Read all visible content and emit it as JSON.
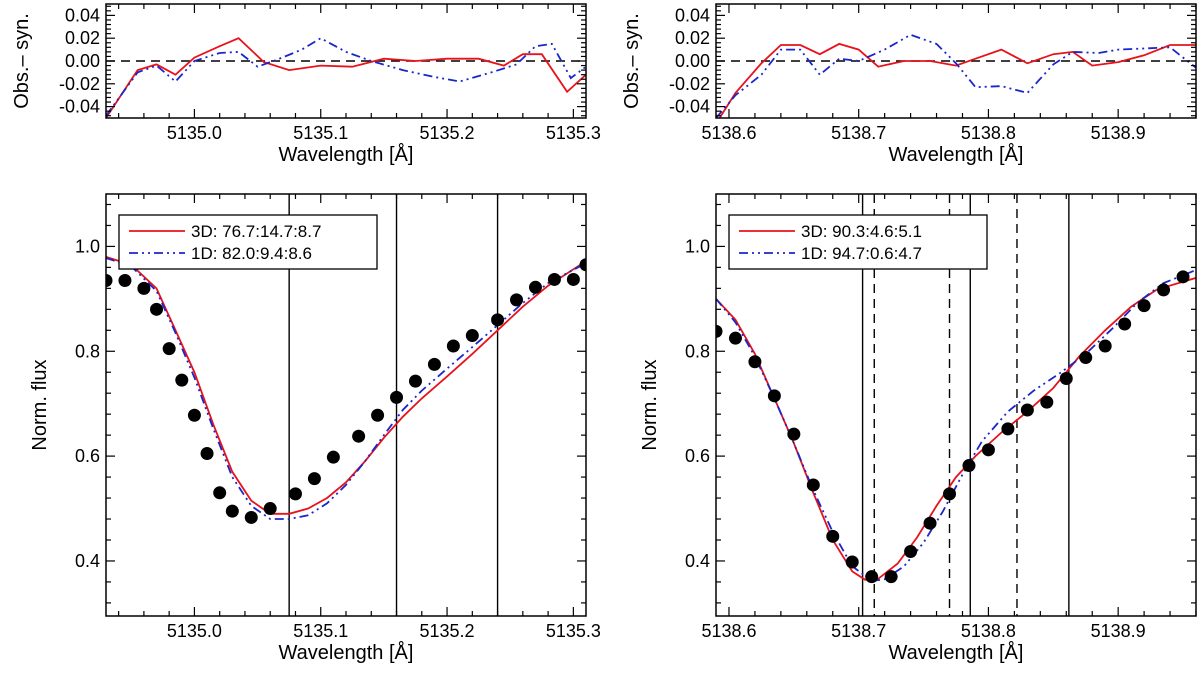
{
  "chart_data": [
    {
      "id": "tl",
      "type": "line",
      "title": "",
      "xlabel": "Wavelength [Å]",
      "ylabel": "Obs.– syn.",
      "xlim": [
        5134.93,
        5135.31
      ],
      "ylim": [
        -0.05,
        0.05
      ],
      "xticks": [
        5135.0,
        5135.1,
        5135.2,
        5135.3
      ],
      "xtick_labels": [
        "5135.0",
        "5135.1",
        "5135.2",
        "5135.3"
      ],
      "yticks": [
        -0.04,
        -0.02,
        0.0,
        0.02,
        0.04
      ],
      "ytick_labels": [
        "-0.04",
        "-0.02",
        "0.00",
        "0.02",
        "0.04"
      ],
      "hlines": [
        {
          "y": 0,
          "style": "dashed",
          "color": "#000000"
        }
      ],
      "series": [
        {
          "name": "3D",
          "color": "#e8121a",
          "style": "solid",
          "x": [
            5134.93,
            5134.955,
            5134.97,
            5134.985,
            5135.0,
            5135.02,
            5135.035,
            5135.055,
            5135.075,
            5135.1,
            5135.125,
            5135.15,
            5135.175,
            5135.2,
            5135.225,
            5135.245,
            5135.26,
            5135.275,
            5135.295,
            5135.31
          ],
          "y": [
            -0.05,
            -0.008,
            -0.003,
            -0.012,
            0.003,
            0.013,
            0.02,
            -0.001,
            -0.008,
            -0.004,
            -0.005,
            0.002,
            0.0,
            0.002,
            0.002,
            -0.004,
            0.006,
            0.006,
            -0.027,
            -0.012
          ]
        },
        {
          "name": "1D",
          "color": "#1a26cc",
          "style": "dashdotdot",
          "x": [
            5134.93,
            5134.955,
            5134.97,
            5134.985,
            5135.0,
            5135.02,
            5135.035,
            5135.05,
            5135.065,
            5135.085,
            5135.1,
            5135.12,
            5135.14,
            5135.165,
            5135.19,
            5135.21,
            5135.235,
            5135.255,
            5135.27,
            5135.283,
            5135.298,
            5135.31
          ],
          "y": [
            -0.048,
            -0.01,
            -0.004,
            -0.018,
            0.0,
            0.007,
            0.008,
            -0.005,
            0.001,
            0.01,
            0.02,
            0.008,
            0.0,
            -0.008,
            -0.014,
            -0.018,
            -0.01,
            -0.003,
            0.013,
            0.015,
            -0.015,
            -0.005
          ]
        }
      ]
    },
    {
      "id": "tr",
      "type": "line",
      "title": "",
      "xlabel": "Wavelength [Å]",
      "ylabel": "Obs.– syn.",
      "xlim": [
        5138.59,
        5138.96
      ],
      "ylim": [
        -0.05,
        0.05
      ],
      "xticks": [
        5138.6,
        5138.7,
        5138.8,
        5138.9
      ],
      "xtick_labels": [
        "5138.6",
        "5138.7",
        "5138.8",
        "5138.9"
      ],
      "yticks": [
        -0.04,
        -0.02,
        0.0,
        0.02,
        0.04
      ],
      "ytick_labels": [
        "-0.04",
        "-0.02",
        "0.00",
        "0.02",
        "0.04"
      ],
      "hlines": [
        {
          "y": 0,
          "style": "dashed",
          "color": "#000000"
        }
      ],
      "series": [
        {
          "name": "3D",
          "color": "#e8121a",
          "style": "solid",
          "x": [
            5138.59,
            5138.605,
            5138.625,
            5138.64,
            5138.655,
            5138.67,
            5138.685,
            5138.7,
            5138.715,
            5138.735,
            5138.755,
            5138.775,
            5138.79,
            5138.81,
            5138.83,
            5138.85,
            5138.865,
            5138.88,
            5138.9,
            5138.92,
            5138.94,
            5138.96
          ],
          "y": [
            -0.055,
            -0.028,
            -0.002,
            0.014,
            0.014,
            0.006,
            0.015,
            0.01,
            -0.005,
            0.0,
            0.0,
            -0.004,
            0.002,
            0.01,
            -0.002,
            0.006,
            0.008,
            -0.004,
            -0.001,
            0.005,
            0.014,
            0.014
          ]
        },
        {
          "name": "1D",
          "color": "#1a26cc",
          "style": "dashdotdot",
          "x": [
            5138.59,
            5138.605,
            5138.625,
            5138.64,
            5138.655,
            5138.67,
            5138.685,
            5138.7,
            5138.72,
            5138.74,
            5138.76,
            5138.775,
            5138.79,
            5138.81,
            5138.83,
            5138.85,
            5138.865,
            5138.885,
            5138.9,
            5138.92,
            5138.94,
            5138.96
          ],
          "y": [
            -0.05,
            -0.03,
            -0.012,
            0.01,
            0.01,
            -0.012,
            0.002,
            0.0,
            0.01,
            0.023,
            0.015,
            -0.002,
            -0.023,
            -0.022,
            -0.028,
            -0.003,
            0.008,
            0.007,
            0.01,
            0.011,
            0.012,
            -0.006
          ]
        }
      ]
    },
    {
      "id": "bl",
      "type": "line",
      "title": "",
      "xlabel": "Wavelength [Å]",
      "ylabel": "Norm. flux",
      "xlim": [
        5134.93,
        5135.31
      ],
      "ylim": [
        0.295,
        1.1
      ],
      "xticks": [
        5135.0,
        5135.1,
        5135.2,
        5135.3
      ],
      "xtick_labels": [
        "5135.0",
        "5135.1",
        "5135.2",
        "5135.3"
      ],
      "yticks": [
        0.4,
        0.6,
        0.8,
        1.0
      ],
      "ytick_labels": [
        "0.4",
        "0.6",
        "0.8",
        "1.0"
      ],
      "vlines": [
        {
          "x": 5135.075,
          "style": "solid"
        },
        {
          "x": 5135.16,
          "style": "solid"
        },
        {
          "x": 5135.24,
          "style": "solid"
        }
      ],
      "legend": {
        "position": "top-left",
        "entries": [
          "3D: 76.7:14.7:8.7",
          "1D: 82.0:9.4:8.6"
        ]
      },
      "observed": {
        "name": "Observed",
        "x": [
          5134.93,
          5134.945,
          5134.96,
          5134.97,
          5134.98,
          5134.99,
          5135.0,
          5135.01,
          5135.02,
          5135.03,
          5135.045,
          5135.06,
          5135.08,
          5135.095,
          5135.11,
          5135.13,
          5135.145,
          5135.16,
          5135.175,
          5135.19,
          5135.205,
          5135.22,
          5135.24,
          5135.255,
          5135.27,
          5135.285,
          5135.3,
          5135.31
        ],
        "y": [
          0.935,
          0.935,
          0.92,
          0.88,
          0.805,
          0.745,
          0.678,
          0.605,
          0.53,
          0.495,
          0.483,
          0.5,
          0.528,
          0.557,
          0.598,
          0.638,
          0.678,
          0.712,
          0.743,
          0.775,
          0.81,
          0.83,
          0.86,
          0.898,
          0.922,
          0.937,
          0.937,
          0.965
        ]
      },
      "series": [
        {
          "name": "3D: 76.7:14.7:8.7",
          "color": "#e8121a",
          "style": "solid",
          "x": [
            5134.93,
            5134.95,
            5134.97,
            5134.985,
            5135.0,
            5135.015,
            5135.03,
            5135.045,
            5135.06,
            5135.075,
            5135.09,
            5135.105,
            5135.12,
            5135.135,
            5135.15,
            5135.165,
            5135.18,
            5135.2,
            5135.22,
            5135.24,
            5135.26,
            5135.28,
            5135.31
          ],
          "y": [
            0.98,
            0.965,
            0.92,
            0.84,
            0.76,
            0.66,
            0.57,
            0.515,
            0.49,
            0.49,
            0.5,
            0.52,
            0.55,
            0.59,
            0.635,
            0.675,
            0.71,
            0.752,
            0.795,
            0.84,
            0.885,
            0.925,
            0.972
          ]
        },
        {
          "name": "1D: 82.0:9.4:8.6",
          "color": "#1a26cc",
          "style": "dashdotdot",
          "x": [
            5134.93,
            5134.95,
            5134.97,
            5134.985,
            5135.0,
            5135.015,
            5135.03,
            5135.045,
            5135.06,
            5135.075,
            5135.09,
            5135.105,
            5135.12,
            5135.135,
            5135.15,
            5135.165,
            5135.18,
            5135.2,
            5135.22,
            5135.24,
            5135.26,
            5135.28,
            5135.31
          ],
          "y": [
            0.978,
            0.962,
            0.915,
            0.835,
            0.75,
            0.652,
            0.56,
            0.505,
            0.48,
            0.48,
            0.487,
            0.51,
            0.545,
            0.59,
            0.64,
            0.688,
            0.725,
            0.767,
            0.808,
            0.85,
            0.892,
            0.93,
            0.968
          ]
        }
      ]
    },
    {
      "id": "br",
      "type": "line",
      "title": "",
      "xlabel": "Wavelength [Å]",
      "ylabel": "Norm. flux",
      "xlim": [
        5138.59,
        5138.96
      ],
      "ylim": [
        0.295,
        1.1
      ],
      "xticks": [
        5138.6,
        5138.7,
        5138.8,
        5138.9
      ],
      "xtick_labels": [
        "5138.6",
        "5138.7",
        "5138.8",
        "5138.9"
      ],
      "yticks": [
        0.4,
        0.6,
        0.8,
        1.0
      ],
      "ytick_labels": [
        "0.4",
        "0.6",
        "0.8",
        "1.0"
      ],
      "vlines": [
        {
          "x": 5138.703,
          "style": "solid"
        },
        {
          "x": 5138.712,
          "style": "dashed"
        },
        {
          "x": 5138.77,
          "style": "dashed"
        },
        {
          "x": 5138.786,
          "style": "solid"
        },
        {
          "x": 5138.822,
          "style": "dashed"
        },
        {
          "x": 5138.862,
          "style": "solid"
        }
      ],
      "legend": {
        "position": "top-left",
        "entries": [
          "3D: 90.3:4.6:5.1",
          "1D: 94.7:0.6:4.7"
        ]
      },
      "observed": {
        "name": "Observed",
        "x": [
          5138.59,
          5138.605,
          5138.62,
          5138.635,
          5138.65,
          5138.665,
          5138.68,
          5138.695,
          5138.71,
          5138.725,
          5138.74,
          5138.755,
          5138.77,
          5138.785,
          5138.8,
          5138.815,
          5138.83,
          5138.845,
          5138.86,
          5138.875,
          5138.89,
          5138.905,
          5138.92,
          5138.935,
          5138.95
        ],
        "y": [
          0.838,
          0.825,
          0.78,
          0.715,
          0.642,
          0.545,
          0.447,
          0.398,
          0.37,
          0.37,
          0.418,
          0.472,
          0.528,
          0.582,
          0.612,
          0.652,
          0.688,
          0.703,
          0.748,
          0.788,
          0.81,
          0.852,
          0.887,
          0.917,
          0.942
        ]
      },
      "series": [
        {
          "name": "3D: 90.3:4.6:5.1",
          "color": "#e8121a",
          "style": "solid",
          "x": [
            5138.59,
            5138.605,
            5138.62,
            5138.635,
            5138.65,
            5138.665,
            5138.68,
            5138.695,
            5138.705,
            5138.715,
            5138.73,
            5138.745,
            5138.76,
            5138.775,
            5138.79,
            5138.81,
            5138.83,
            5138.85,
            5138.87,
            5138.89,
            5138.91,
            5138.93,
            5138.96
          ],
          "y": [
            0.9,
            0.86,
            0.795,
            0.71,
            0.625,
            0.53,
            0.44,
            0.38,
            0.364,
            0.366,
            0.395,
            0.445,
            0.505,
            0.56,
            0.6,
            0.645,
            0.685,
            0.73,
            0.79,
            0.84,
            0.885,
            0.918,
            0.94
          ]
        },
        {
          "name": "1D: 94.7:0.6:4.7",
          "color": "#1a26cc",
          "style": "dashdotdot",
          "x": [
            5138.59,
            5138.605,
            5138.62,
            5138.635,
            5138.65,
            5138.665,
            5138.68,
            5138.695,
            5138.71,
            5138.72,
            5138.735,
            5138.75,
            5138.765,
            5138.78,
            5138.795,
            5138.815,
            5138.835,
            5138.855,
            5138.875,
            5138.895,
            5138.915,
            5138.935,
            5138.96
          ],
          "y": [
            0.9,
            0.855,
            0.79,
            0.71,
            0.625,
            0.535,
            0.455,
            0.39,
            0.362,
            0.365,
            0.39,
            0.435,
            0.495,
            0.565,
            0.628,
            0.685,
            0.725,
            0.758,
            0.795,
            0.842,
            0.893,
            0.93,
            0.955
          ]
        }
      ]
    }
  ]
}
